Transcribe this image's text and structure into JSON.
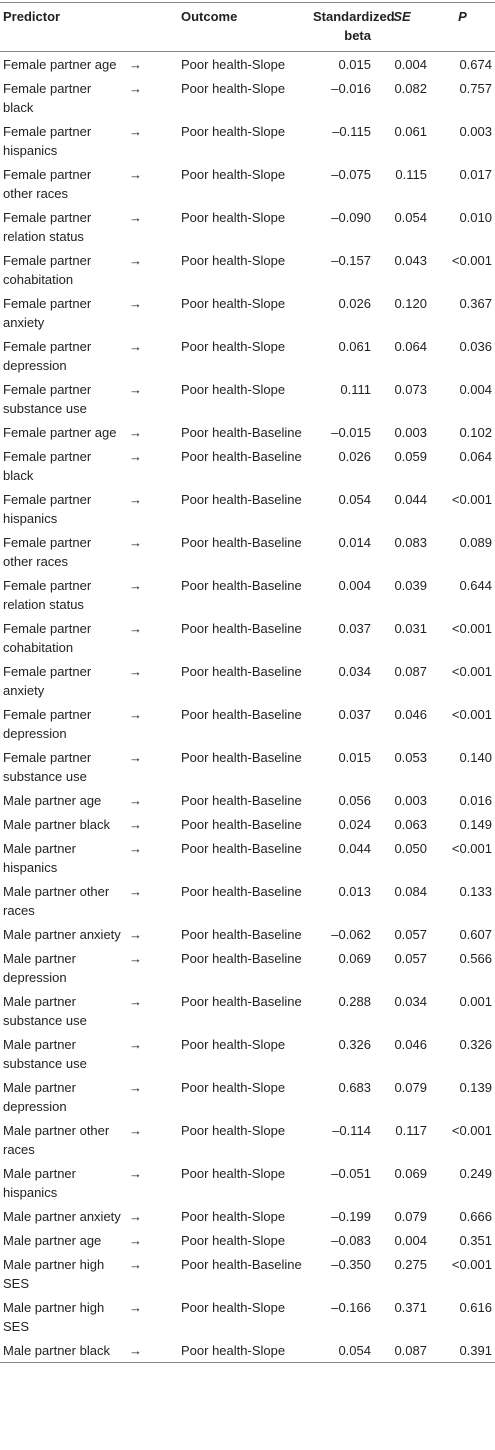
{
  "table": {
    "header": {
      "predictor": "Predictor",
      "outcome": "Outcome",
      "beta": "Standardized beta",
      "se": "SE",
      "p": "P"
    },
    "rows": [
      [
        "Female partner age",
        "→",
        "Poor health-Slope",
        "0.015",
        "0.004",
        "0.674"
      ],
      [
        "Female partner black",
        "→",
        "Poor health-Slope",
        "–0.016",
        "0.082",
        "0.757"
      ],
      [
        "Female partner hispanics",
        "→",
        "Poor health-Slope",
        "–0.115",
        "0.061",
        "0.003"
      ],
      [
        "Female partner other races",
        "→",
        "Poor health-Slope",
        "–0.075",
        "0.115",
        "0.017"
      ],
      [
        "Female partner relation status",
        "→",
        "Poor health-Slope",
        "–0.090",
        "0.054",
        "0.010"
      ],
      [
        "Female partner cohabitation",
        "→",
        "Poor health-Slope",
        "–0.157",
        "0.043",
        "<0.001"
      ],
      [
        "Female partner anxiety",
        "→",
        "Poor health-Slope",
        "0.026",
        "0.120",
        "0.367"
      ],
      [
        "Female partner depression",
        "→",
        "Poor health-Slope",
        "0.061",
        "0.064",
        "0.036"
      ],
      [
        "Female partner substance use",
        "→",
        "Poor health-Slope",
        "0.111",
        "0.073",
        "0.004"
      ],
      [
        "Female partner age",
        "→",
        "Poor health-Baseline",
        "–0.015",
        "0.003",
        "0.102"
      ],
      [
        "Female partner black",
        "→",
        "Poor health-Baseline",
        "0.026",
        "0.059",
        "0.064"
      ],
      [
        "Female partner hispanics",
        "→",
        "Poor health-Baseline",
        "0.054",
        "0.044",
        "<0.001"
      ],
      [
        "Female partner other races",
        "→",
        "Poor health-Baseline",
        "0.014",
        "0.083",
        "0.089"
      ],
      [
        "Female partner relation status",
        "→",
        "Poor health-Baseline",
        "0.004",
        "0.039",
        "0.644"
      ],
      [
        "Female partner cohabitation",
        "→",
        "Poor health-Baseline",
        "0.037",
        "0.031",
        "<0.001"
      ],
      [
        "Female partner anxiety",
        "→",
        "Poor health-Baseline",
        "0.034",
        "0.087",
        "<0.001"
      ],
      [
        "Female partner depression",
        "→",
        "Poor health-Baseline",
        "0.037",
        "0.046",
        "<0.001"
      ],
      [
        "Female partner substance use",
        "→",
        "Poor health-Baseline",
        "0.015",
        "0.053",
        "0.140"
      ],
      [
        "Male partner age",
        "→",
        "Poor health-Baseline",
        "0.056",
        "0.003",
        "0.016"
      ],
      [
        "Male partner black",
        "→",
        "Poor health-Baseline",
        "0.024",
        "0.063",
        "0.149"
      ],
      [
        "Male partner hispanics",
        "→",
        "Poor health-Baseline",
        "0.044",
        "0.050",
        "<0.001"
      ],
      [
        "Male partner other races",
        "→",
        "Poor health-Baseline",
        "0.013",
        "0.084",
        "0.133"
      ],
      [
        "Male partner anxiety",
        "→",
        "Poor health-Baseline",
        "–0.062",
        "0.057",
        "0.607"
      ],
      [
        "Male partner depression",
        "→",
        "Poor health-Baseline",
        "0.069",
        "0.057",
        "0.566"
      ],
      [
        "Male partner substance use",
        "→",
        "Poor health-Baseline",
        "0.288",
        "0.034",
        "0.001"
      ],
      [
        "Male partner substance use",
        "→",
        "Poor health-Slope",
        "0.326",
        "0.046",
        "0.326"
      ],
      [
        "Male partner depression",
        "→",
        "Poor health-Slope",
        "0.683",
        "0.079",
        "0.139"
      ],
      [
        "Male partner other races",
        "→",
        "Poor health-Slope",
        "–0.114",
        "0.117",
        "<0.001"
      ],
      [
        "Male partner hispanics",
        "→",
        "Poor health-Slope",
        "–0.051",
        "0.069",
        "0.249"
      ],
      [
        "Male partner anxiety",
        "→",
        "Poor health-Slope",
        "–0.199",
        "0.079",
        "0.666"
      ],
      [
        "Male partner age",
        "→",
        "Poor health-Slope",
        "–0.083",
        "0.004",
        "0.351"
      ],
      [
        "Male partner high SES",
        "→",
        "Poor health-Baseline",
        "–0.350",
        "0.275",
        "<0.001"
      ],
      [
        "Male partner high SES",
        "→",
        "Poor health-Slope",
        "–0.166",
        "0.371",
        "0.616"
      ],
      [
        "Male partner black",
        "→",
        "Poor health-Slope",
        "0.054",
        "0.087",
        "0.391"
      ]
    ]
  }
}
